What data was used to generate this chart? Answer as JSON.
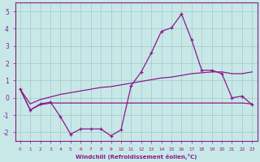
{
  "xlabel": "Windchill (Refroidissement éolien,°C)",
  "line_color": "#8B1A8B",
  "bg_color": "#C8E8E8",
  "grid_color": "#A0C8C8",
  "ylim": [
    -2.5,
    5.5
  ],
  "xlim": [
    -0.5,
    23.5
  ],
  "x": [
    0,
    1,
    2,
    3,
    4,
    5,
    6,
    7,
    8,
    9,
    10,
    11,
    12,
    13,
    14,
    15,
    16,
    17,
    18,
    19,
    20,
    21,
    22,
    23
  ],
  "y_main": [
    0.5,
    -0.7,
    -0.35,
    -0.25,
    -1.1,
    -2.1,
    -1.8,
    -1.8,
    -1.8,
    -2.2,
    -1.85,
    0.7,
    1.5,
    2.6,
    3.85,
    4.05,
    4.85,
    3.35,
    1.6,
    1.6,
    1.4,
    0.0,
    0.1,
    -0.4
  ],
  "y_upper": [
    0.5,
    -0.35,
    -0.1,
    0.05,
    0.2,
    0.3,
    0.4,
    0.5,
    0.6,
    0.65,
    0.75,
    0.85,
    0.95,
    1.05,
    1.15,
    1.2,
    1.3,
    1.4,
    1.45,
    1.5,
    1.5,
    1.4,
    1.4,
    1.5
  ],
  "y_lower": [
    0.5,
    -0.7,
    -0.4,
    -0.3,
    -0.3,
    -0.3,
    -0.3,
    -0.3,
    -0.3,
    -0.3,
    -0.3,
    -0.3,
    -0.3,
    -0.3,
    -0.3,
    -0.3,
    -0.3,
    -0.3,
    -0.3,
    -0.3,
    -0.3,
    -0.3,
    -0.3,
    -0.35
  ],
  "yticks": [
    -2,
    -1,
    0,
    1,
    2,
    3,
    4,
    5
  ]
}
